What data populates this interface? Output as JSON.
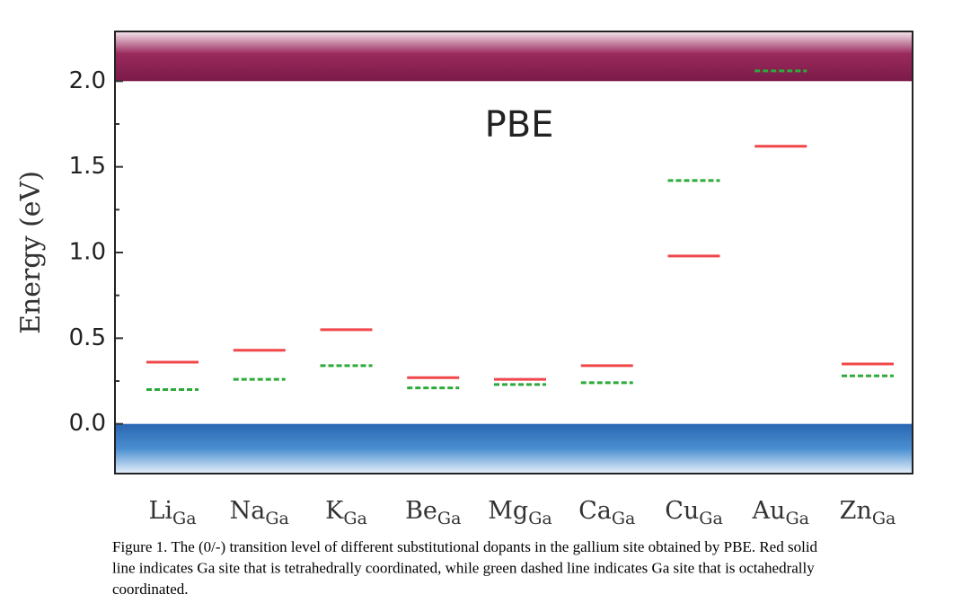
{
  "chart_data": {
    "type": "level",
    "annotation": "PBE",
    "y_label": "Energy (eV)",
    "categories": [
      "Li",
      "Na",
      "K",
      "Be",
      "Mg",
      "Ca",
      "Cu",
      "Au",
      "Zn"
    ],
    "category_subscript": "Ga",
    "series": [
      {
        "color": "#f0474a",
        "dashed": false,
        "values": [
          0.36,
          0.43,
          0.55,
          0.27,
          0.26,
          0.34,
          0.98,
          1.62,
          0.35
        ]
      },
      {
        "color": "#2eaa3a",
        "dashed": true,
        "values": [
          0.2,
          0.26,
          0.34,
          0.21,
          0.23,
          0.24,
          1.42,
          2.06,
          0.28
        ]
      }
    ],
    "ylim": [
      -0.29,
      2.29
    ],
    "yticks": [
      {
        "value": 0,
        "label": "0.0"
      },
      0.5,
      {
        "value": 1,
        "label": "1.0"
      },
      1.5,
      {
        "value": 2,
        "label": "2.0"
      }
    ],
    "minor_yticks": [
      0.25,
      0.75,
      1.25,
      1.75
    ],
    "valence_band_max": 0,
    "conduction_band_min": 2
  },
  "caption": {
    "lines": [
      "Figure 1. The (0/-) transition level of different substitutional dopants in the gallium site obtained by PBE. Red solid",
      "line indicates Ga site that is tetrahedrally coordinated, while green dashed line indicates Ga site that is octahedrally",
      "coordinated."
    ]
  }
}
